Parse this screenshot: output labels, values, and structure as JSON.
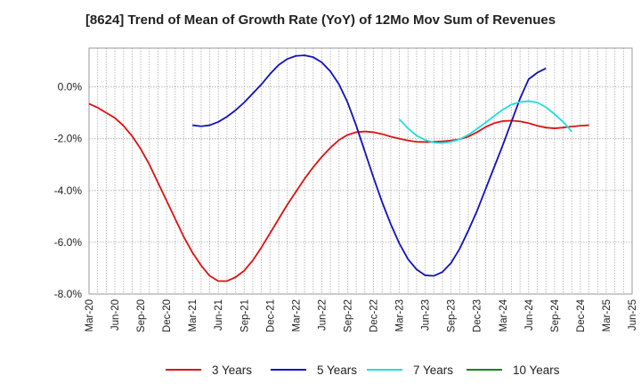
{
  "chart_data": {
    "type": "line",
    "title": "[8624]  Trend of Mean of Growth Rate (YoY) of 12Mo Mov Sum of Revenues",
    "xlabel": "",
    "ylabel": "",
    "ylim": [
      -8.0,
      1.5
    ],
    "y_ticks": [
      0.0,
      -2.0,
      -4.0,
      -6.0,
      -8.0
    ],
    "y_tick_labels": [
      "0.0%",
      "-2.0%",
      "-4.0%",
      "-6.0%",
      "-8.0%"
    ],
    "x_range": [
      "Mar-20",
      "Jun-25"
    ],
    "x_tick_labels": [
      "Mar-20",
      "Jun-20",
      "Sep-20",
      "Dec-20",
      "Mar-21",
      "Jun-21",
      "Sep-21",
      "Dec-21",
      "Mar-22",
      "Jun-22",
      "Sep-22",
      "Dec-22",
      "Mar-23",
      "Jun-23",
      "Sep-23",
      "Dec-23",
      "Mar-24",
      "Jun-24",
      "Sep-24",
      "Dec-24",
      "Mar-25",
      "Jun-25"
    ],
    "grid": true,
    "legend_position": "bottom",
    "series": [
      {
        "name": "3 Years",
        "color": "#dd1111",
        "start": "Mar-20",
        "values": [
          -0.65,
          -0.8,
          -1.0,
          -1.2,
          -1.5,
          -1.9,
          -2.4,
          -3.0,
          -3.7,
          -4.4,
          -5.1,
          -5.8,
          -6.4,
          -6.9,
          -7.3,
          -7.5,
          -7.5,
          -7.35,
          -7.1,
          -6.7,
          -6.2,
          -5.65,
          -5.1,
          -4.55,
          -4.05,
          -3.55,
          -3.1,
          -2.7,
          -2.35,
          -2.05,
          -1.85,
          -1.75,
          -1.72,
          -1.75,
          -1.82,
          -1.92,
          -2.0,
          -2.07,
          -2.12,
          -2.13,
          -2.12,
          -2.1,
          -2.07,
          -2.02,
          -1.92,
          -1.75,
          -1.55,
          -1.4,
          -1.32,
          -1.3,
          -1.33,
          -1.4,
          -1.5,
          -1.57,
          -1.6,
          -1.57,
          -1.53,
          -1.5,
          -1.48
        ]
      },
      {
        "name": "5 Years",
        "color": "#1111bb",
        "start": "Mar-21",
        "values": [
          -1.48,
          -1.52,
          -1.48,
          -1.35,
          -1.15,
          -0.9,
          -0.6,
          -0.25,
          0.1,
          0.5,
          0.85,
          1.08,
          1.2,
          1.22,
          1.15,
          0.95,
          0.6,
          0.1,
          -0.6,
          -1.5,
          -2.5,
          -3.5,
          -4.45,
          -5.3,
          -6.05,
          -6.65,
          -7.05,
          -7.28,
          -7.3,
          -7.15,
          -6.8,
          -6.25,
          -5.55,
          -4.8,
          -3.95,
          -3.1,
          -2.25,
          -1.35,
          -0.45,
          0.3,
          0.55,
          0.72
        ]
      },
      {
        "name": "7 Years",
        "color": "#22dddd",
        "start": "Mar-23",
        "values": [
          -1.25,
          -1.6,
          -1.88,
          -2.05,
          -2.15,
          -2.17,
          -2.12,
          -2.02,
          -1.85,
          -1.62,
          -1.38,
          -1.12,
          -0.88,
          -0.68,
          -0.58,
          -0.55,
          -0.6,
          -0.78,
          -1.05,
          -1.35,
          -1.72
        ]
      },
      {
        "name": "10 Years",
        "color": "#118811",
        "start": "Mar-20",
        "values": []
      }
    ]
  }
}
